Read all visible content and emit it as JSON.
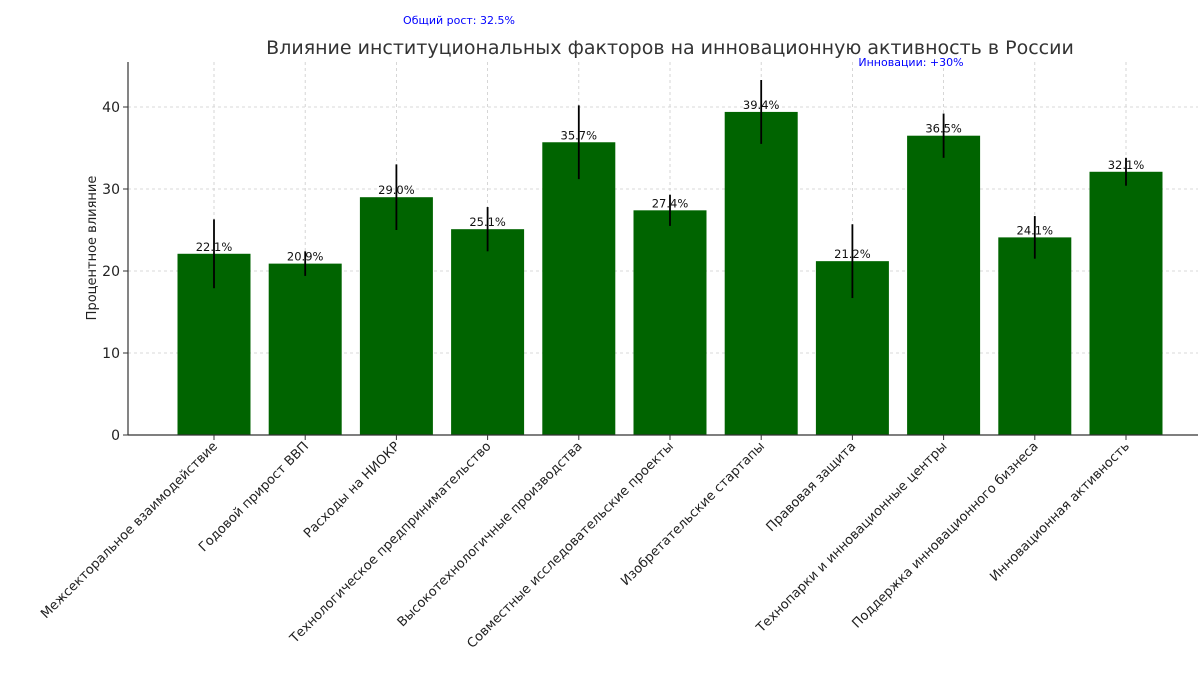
{
  "chart_data": {
    "type": "bar",
    "title": "Влияние институциональных факторов на инновационную активность в России",
    "ylabel": "Процентное влияние",
    "xlabel": "",
    "ylim": [
      0,
      45
    ],
    "yticks": [
      0,
      10,
      20,
      30,
      40
    ],
    "grid": true,
    "bar_color": "#006400",
    "error_color": "#000000",
    "annotation_color": "#0000ff",
    "categories": [
      "Межсекторальное взаимодействие",
      "Годовой прирост ВВП",
      "Расходы на НИОКР",
      "Технологическое предпринимательство",
      "Высокотехнологичные производства",
      "Совместные исследовательские проекты",
      "Изобретательские стартапы",
      "Правовая защита",
      "Технопарки и инновационные центры",
      "Поддержка инновационного бизнеса",
      "Инновационная активность"
    ],
    "values": [
      22.1,
      20.9,
      29.0,
      25.1,
      35.7,
      27.4,
      39.4,
      21.2,
      36.5,
      24.1,
      32.1
    ],
    "errors": [
      4.2,
      1.5,
      4.0,
      2.7,
      4.5,
      1.9,
      3.9,
      4.5,
      2.7,
      2.6,
      1.7
    ],
    "value_labels": [
      "22.1%",
      "20.9%",
      "29.0%",
      "25.1%",
      "35.7%",
      "27.4%",
      "39.4%",
      "21.2%",
      "36.5%",
      "24.1%",
      "32.1%"
    ],
    "annotations": [
      {
        "text": "Общий рост: 32.5%"
      },
      {
        "text": "Инновации: +30%"
      }
    ]
  }
}
